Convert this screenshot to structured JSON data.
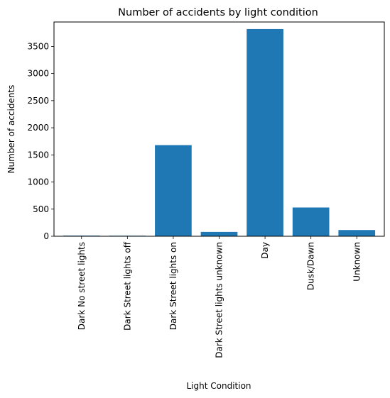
{
  "chart_data": {
    "type": "bar",
    "title": "Number of accidents by light condition",
    "xlabel": "Light Condition",
    "ylabel": "Number of accidents",
    "categories": [
      "Dark No street lights",
      "Dark Street lights off",
      "Dark Street lights on",
      "Dark Street lights unknown",
      "Day",
      "Dusk/Dawn",
      "Unknown"
    ],
    "values": [
      12,
      10,
      1680,
      80,
      3820,
      530,
      115
    ],
    "ylim": [
      0,
      3950
    ],
    "yticks": [
      0,
      500,
      1000,
      1500,
      2000,
      2500,
      3000,
      3500
    ],
    "bar_color": "#1f77b4",
    "grid": false,
    "legend": "none"
  }
}
